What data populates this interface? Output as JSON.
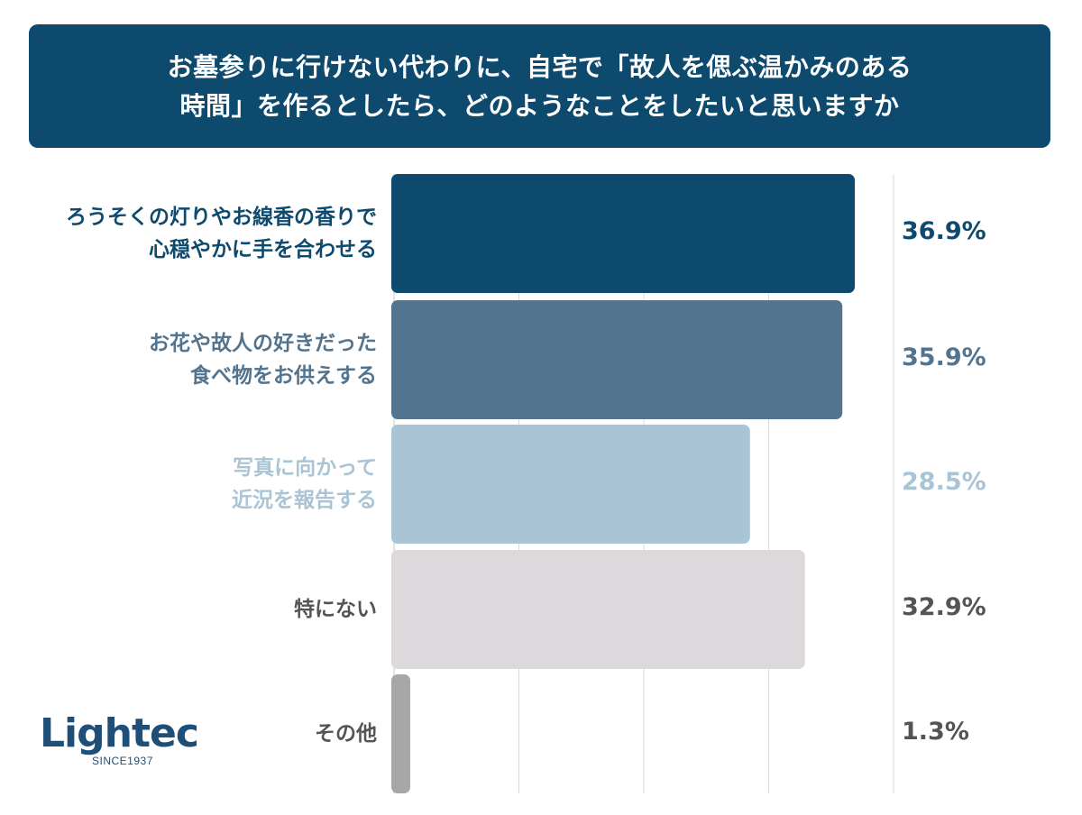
{
  "title": "お墓参りに行けない代わりに、自宅で「故人を偲ぶ温かみのある\n時間」を作るとしたら、どのようなことをしたいと思いますか",
  "chart_data": {
    "type": "bar",
    "orientation": "horizontal",
    "categories": [
      "ろうそくの灯りやお線香の香りで\n心穏やかに手を合わせる",
      "お花や故人の好きだった\n食べ物をお供えする",
      "写真に向かって\n近況を報告する",
      "特にない",
      "その他"
    ],
    "values": [
      36.9,
      35.9,
      28.5,
      32.9,
      1.3
    ],
    "value_labels": [
      "36.9%",
      "35.9%",
      "28.5%",
      "32.9%",
      "1.3%"
    ],
    "colors": [
      "#0e4a6e",
      "#53748e",
      "#a9c4d5",
      "#dcd8dc",
      "#a8a6a8"
    ],
    "label_colors": [
      "#0e4a6e",
      "#53748e",
      "#a9c4d5",
      "#555355",
      "#555355"
    ],
    "xlim": [
      0,
      40
    ],
    "grid": true
  },
  "logo": {
    "name": "Lightec",
    "tagline": "SINCE1937"
  }
}
